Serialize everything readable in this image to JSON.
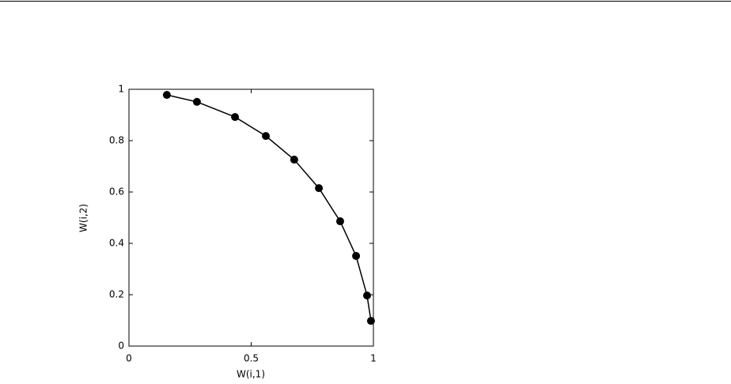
{
  "chart_data": {
    "type": "line",
    "xlabel": "W(i,1)",
    "ylabel": "W(i,2)",
    "x": [
      0.155,
      0.278,
      0.434,
      0.56,
      0.676,
      0.777,
      0.864,
      0.929,
      0.974,
      0.99
    ],
    "series": [
      {
        "name": "W",
        "color": "#000000",
        "marker": "circle",
        "values": [
          0.978,
          0.951,
          0.892,
          0.818,
          0.726,
          0.615,
          0.486,
          0.351,
          0.197,
          0.098
        ]
      }
    ],
    "xlim": [
      0,
      1
    ],
    "xticks": [
      0,
      0.5,
      1
    ],
    "ylim": [
      0,
      1
    ],
    "yticks": [
      0,
      0.2,
      0.4,
      0.6,
      0.8,
      1
    ],
    "grid": false
  }
}
